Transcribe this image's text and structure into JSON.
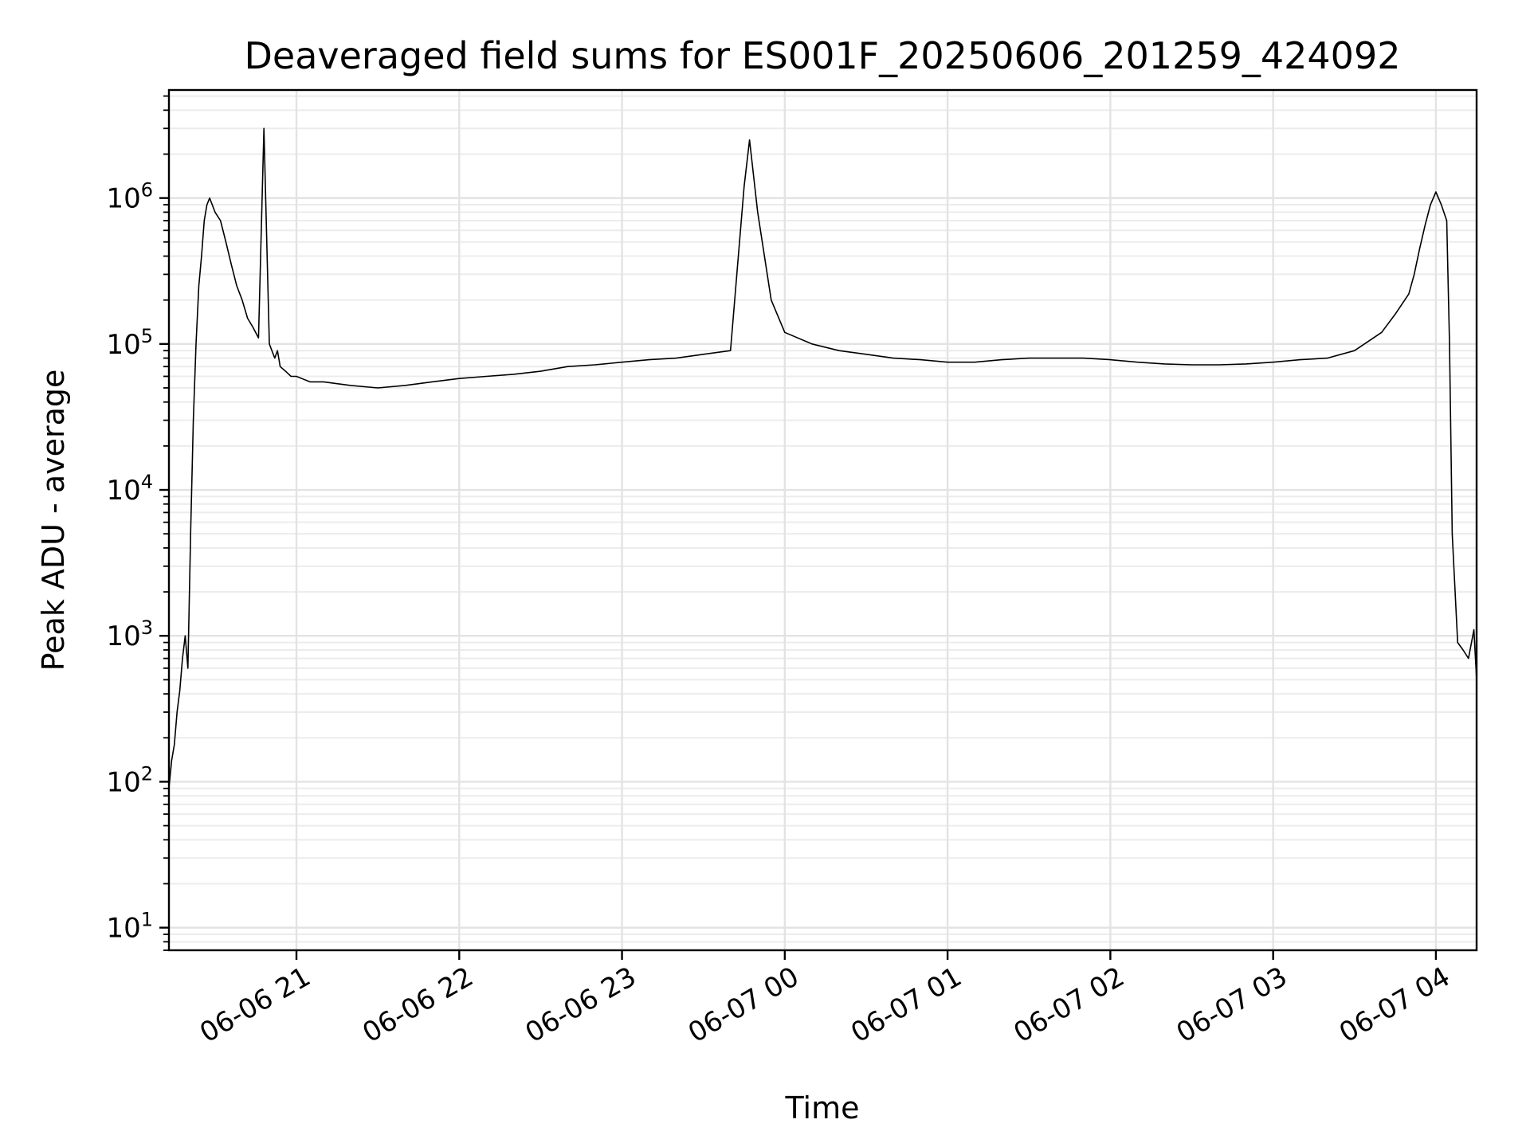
{
  "chart_data": {
    "type": "line",
    "title": "Deaveraged field sums for ES001F_20250606_201259_424092",
    "xlabel": "Time",
    "ylabel": "Peak ADU - average",
    "xscale": "time",
    "yscale": "log",
    "xlim": [
      "06-06 20:13",
      "06-07 04:15"
    ],
    "ylim": [
      7,
      5500000
    ],
    "grid": true,
    "line_color": "#000000",
    "x_ticks": [
      "06-06 21",
      "06-06 22",
      "06-06 23",
      "06-07 00",
      "06-07 01",
      "06-07 02",
      "06-07 03",
      "06-07 04"
    ],
    "y_ticks": [
      {
        "base": "10",
        "exp": "1"
      },
      {
        "base": "10",
        "exp": "2"
      },
      {
        "base": "10",
        "exp": "3"
      },
      {
        "base": "10",
        "exp": "4"
      },
      {
        "base": "10",
        "exp": "5"
      },
      {
        "base": "10",
        "exp": "6"
      }
    ],
    "series": [
      {
        "x": [
          "06-06 20:13",
          "06-06 20:14",
          "06-06 20:15",
          "06-06 20:16",
          "06-06 20:17",
          "06-06 20:18",
          "06-06 20:19",
          "06-06 20:20",
          "06-06 20:21",
          "06-06 20:22",
          "06-06 20:23",
          "06-06 20:24",
          "06-06 20:25",
          "06-06 20:26",
          "06-06 20:27",
          "06-06 20:28",
          "06-06 20:30",
          "06-06 20:32",
          "06-06 20:34",
          "06-06 20:36",
          "06-06 20:38",
          "06-06 20:40",
          "06-06 20:42",
          "06-06 20:44",
          "06-06 20:46",
          "06-06 20:48",
          "06-06 20:50",
          "06-06 20:52",
          "06-06 20:53",
          "06-06 20:54",
          "06-06 20:56",
          "06-06 20:58",
          "06-06 21:00",
          "06-06 21:05",
          "06-06 21:10",
          "06-06 21:20",
          "06-06 21:30",
          "06-06 21:40",
          "06-06 21:50",
          "06-06 22:00",
          "06-06 22:10",
          "06-06 22:20",
          "06-06 22:30",
          "06-06 22:40",
          "06-06 22:50",
          "06-06 23:00",
          "06-06 23:10",
          "06-06 23:20",
          "06-06 23:30",
          "06-06 23:40",
          "06-06 23:45",
          "06-06 23:47",
          "06-06 23:50",
          "06-06 23:55",
          "06-07 00:00",
          "06-07 00:10",
          "06-07 00:20",
          "06-07 00:30",
          "06-07 00:40",
          "06-07 00:50",
          "06-07 01:00",
          "06-07 01:10",
          "06-07 01:20",
          "06-07 01:30",
          "06-07 01:40",
          "06-07 01:50",
          "06-07 02:00",
          "06-07 02:10",
          "06-07 02:20",
          "06-07 02:30",
          "06-07 02:40",
          "06-07 02:50",
          "06-07 03:00",
          "06-07 03:10",
          "06-07 03:20",
          "06-07 03:30",
          "06-07 03:40",
          "06-07 03:45",
          "06-07 03:50",
          "06-07 03:52",
          "06-07 03:54",
          "06-07 03:56",
          "06-07 03:58",
          "06-07 04:00",
          "06-07 04:02",
          "06-07 04:04",
          "06-07 04:05",
          "06-07 04:06",
          "06-07 04:08",
          "06-07 04:10",
          "06-07 04:12",
          "06-07 04:14",
          "06-07 04:15"
        ],
        "y": [
          90,
          140,
          180,
          300,
          420,
          700,
          1000,
          600,
          5000,
          30000,
          100000,
          250000,
          400000,
          700000,
          900000,
          1000000,
          800000,
          700000,
          500000,
          350000,
          250000,
          200000,
          150000,
          130000,
          110000,
          3000000,
          100000,
          80000,
          90000,
          70000,
          65000,
          60000,
          60000,
          55000,
          55000,
          52000,
          50000,
          52000,
          55000,
          58000,
          60000,
          62000,
          65000,
          70000,
          72000,
          75000,
          78000,
          80000,
          85000,
          90000,
          1200000,
          2500000,
          800000,
          200000,
          120000,
          100000,
          90000,
          85000,
          80000,
          78000,
          75000,
          75000,
          78000,
          80000,
          80000,
          80000,
          78000,
          75000,
          73000,
          72000,
          72000,
          73000,
          75000,
          78000,
          80000,
          90000,
          120000,
          160000,
          220000,
          300000,
          450000,
          650000,
          900000,
          1100000,
          900000,
          700000,
          100000,
          5000,
          900,
          800,
          700,
          1100,
          500
        ]
      }
    ]
  }
}
